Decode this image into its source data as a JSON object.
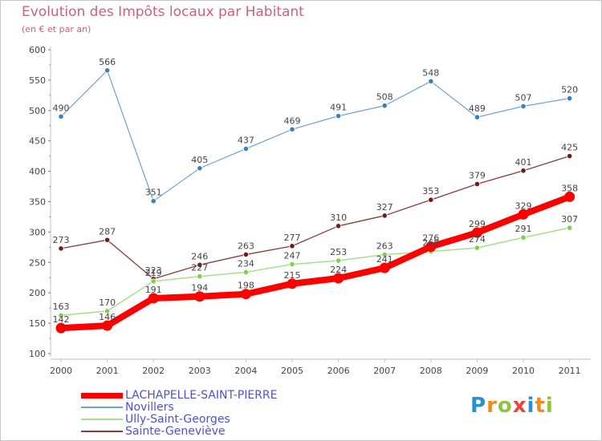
{
  "chart_data": {
    "type": "line",
    "title": "Evolution des Impôts locaux par Habitant",
    "subtitle": "(en € et par an)",
    "xlabel": "",
    "ylabel": "",
    "categories": [
      "2000",
      "2001",
      "2002",
      "2003",
      "2004",
      "2005",
      "2006",
      "2007",
      "2008",
      "2009",
      "2010",
      "2011"
    ],
    "ylim": [
      100,
      600
    ],
    "yticks": [
      100,
      150,
      200,
      250,
      300,
      350,
      400,
      450,
      500,
      550,
      600
    ],
    "grid": false,
    "legend_position": "bottom-left",
    "series": [
      {
        "name": "LACHAPELLE-SAINT-PIERRE",
        "color": "#ff0000",
        "values": [
          142,
          146,
          191,
          194,
          198,
          215,
          224,
          241,
          276,
          299,
          329,
          358
        ]
      },
      {
        "name": "Novillers",
        "color": "#6ea3cf",
        "values": [
          490,
          566,
          351,
          405,
          437,
          469,
          491,
          508,
          548,
          489,
          507,
          520
        ]
      },
      {
        "name": "Ully-Saint-Georges",
        "color": "#a6e08c",
        "values": [
          163,
          170,
          219,
          227,
          234,
          247,
          253,
          263,
          268,
          274,
          291,
          307
        ]
      },
      {
        "name": "Sainte-Geneviève",
        "color": "#8b3a3a",
        "values": [
          273,
          287,
          223,
          246,
          263,
          277,
          310,
          327,
          353,
          379,
          401,
          425
        ]
      }
    ]
  },
  "logo": {
    "text": "Proxiti",
    "letters": [
      "P",
      "r",
      "o",
      "x",
      "i",
      "t",
      "i"
    ],
    "colors": [
      "#2a8fd6",
      "#f08a1c",
      "#8cc63f",
      "#e8453c",
      "#2a8fd6",
      "#f08a1c",
      "#8cc63f"
    ]
  }
}
